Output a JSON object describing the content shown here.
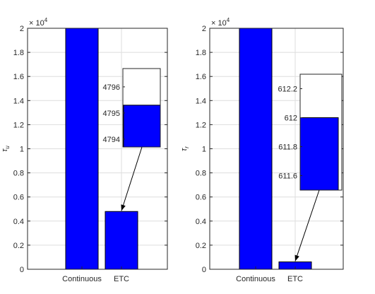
{
  "chart_data": [
    {
      "type": "bar",
      "categories": [
        "Continuous",
        "ETC"
      ],
      "values": [
        20000,
        4795.3
      ],
      "ylabel": "τ_u",
      "ylim": [
        0,
        20000
      ],
      "yticks": [
        0,
        0.2,
        0.4,
        0.6,
        0.8,
        1,
        1.2,
        1.4,
        1.6,
        1.8,
        2
      ],
      "y_exponent": "× 10^4",
      "grid": true,
      "bar_color": "#0000ff",
      "inset": {
        "type": "bar",
        "category": "ETC",
        "value": 4795.3,
        "ylim": [
          4793.7,
          4796.7
        ],
        "yticks": [
          4794,
          4795,
          4796
        ]
      }
    },
    {
      "type": "bar",
      "categories": [
        "Continuous",
        "ETC"
      ],
      "values": [
        20000,
        612
      ],
      "ylabel": "τ_r",
      "ylim": [
        0,
        20000
      ],
      "yticks": [
        0,
        0.2,
        0.4,
        0.6,
        0.8,
        1,
        1.2,
        1.4,
        1.6,
        1.8,
        2
      ],
      "y_exponent": "× 10^4",
      "grid": true,
      "bar_color": "#0000ff",
      "inset": {
        "type": "bar",
        "category": "ETC",
        "value": 612,
        "ylim": [
          611.5,
          612.3
        ],
        "yticks": [
          611.6,
          611.8,
          612,
          612.2
        ]
      }
    }
  ]
}
